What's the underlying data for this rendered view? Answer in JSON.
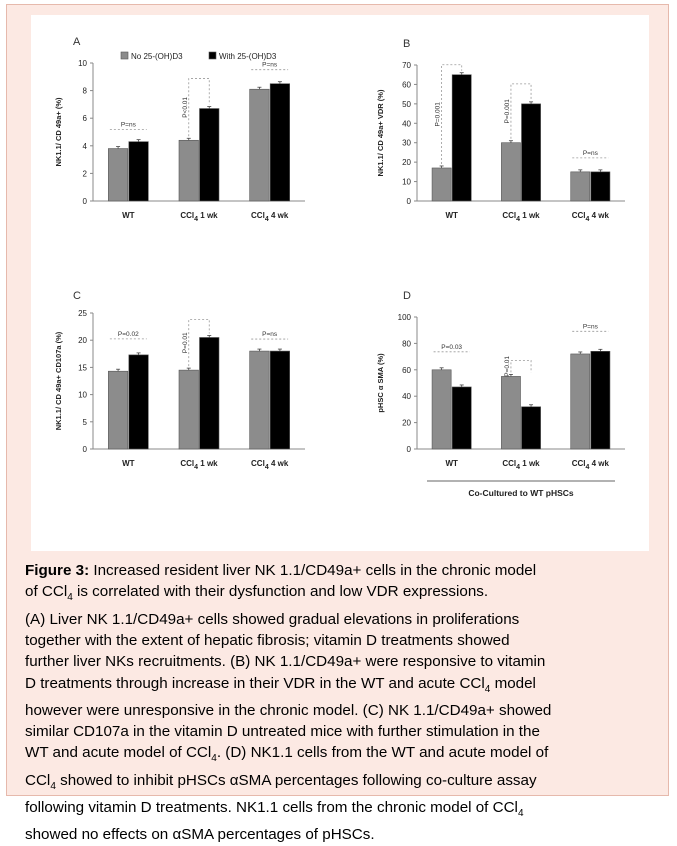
{
  "chart_data": [
    {
      "type": "bar",
      "panel_letter": "A",
      "ylabel": "NK1.1/ CD 49a+ (%)",
      "ylim": [
        0,
        10
      ],
      "yticks": [
        0,
        2,
        4,
        6,
        8,
        10
      ],
      "categories": [
        "WT",
        "CCl4 1 wk",
        "CCl4 4 wk"
      ],
      "series": [
        {
          "name": "No 25-(OH)D3",
          "values": [
            3.8,
            4.4,
            8.1
          ]
        },
        {
          "name": "With 25-(OH)D3",
          "values": [
            4.3,
            6.7,
            8.5
          ]
        }
      ],
      "annotations": [
        "P=ns",
        "P<0.01",
        "P=ns"
      ],
      "legend": "top"
    },
    {
      "type": "bar",
      "panel_letter": "B",
      "ylabel": "NK1.1/ CD 49a+ VDR (%)",
      "ylim": [
        0,
        70
      ],
      "yticks": [
        0,
        10,
        20,
        30,
        40,
        50,
        60,
        70
      ],
      "categories": [
        "WT",
        "CCl4 1 wk",
        "CCl4 4 wk"
      ],
      "series": [
        {
          "values": [
            17,
            30,
            15
          ]
        },
        {
          "values": [
            65,
            50,
            15
          ]
        }
      ],
      "annotations": [
        "P=0.001",
        "P=0.001",
        "P=ns"
      ]
    },
    {
      "type": "bar",
      "panel_letter": "C",
      "ylabel": "NK1.1/ CD 49a+ CD107a (%)",
      "ylim": [
        0,
        25
      ],
      "yticks": [
        0,
        5,
        10,
        15,
        20,
        25
      ],
      "categories": [
        "WT",
        "CCl4 1 wk",
        "CCl4 4 wk"
      ],
      "series": [
        {
          "values": [
            14.3,
            14.5,
            18
          ]
        },
        {
          "values": [
            17.3,
            20.5,
            18
          ]
        }
      ],
      "annotations": [
        "P=0.02",
        "P=0.01",
        "P=ns"
      ]
    },
    {
      "type": "bar",
      "panel_letter": "D",
      "ylabel": "pHSC α SMA (%)",
      "ylim": [
        0,
        100
      ],
      "yticks": [
        0,
        20,
        40,
        60,
        80,
        100
      ],
      "categories": [
        "WT",
        "CCl4 1 wk",
        "CCl4 4 wk"
      ],
      "series": [
        {
          "values": [
            60,
            55,
            72
          ]
        },
        {
          "values": [
            47,
            32,
            74
          ]
        }
      ],
      "annotations": [
        "P=0.03",
        "P=0.01",
        "P=ns"
      ],
      "xlabel": "Co-Cultured to WT pHSCs"
    }
  ],
  "caption": {
    "heading": "Figure 3:",
    "lines": [
      " Increased resident liver NK 1.1/CD49a+ cells in the chronic model",
      "of CCl4 is correlated with their dysfunction and low VDR expressions.",
      "(A) Liver NK 1.1/CD49a+ cells showed gradual elevations in proliferations",
      "together with the extent of hepatic fibrosis; vitamin D treatments showed",
      "further liver NKs recruitments. (B) NK 1.1/CD49a+ were responsive to vitamin",
      "D treatments through increase in their VDR in the WT and acute CCl4 model",
      "however were unresponsive in the chronic model. (C) NK 1.1/CD49a+ showed",
      "similar CD107a in the vitamin D untreated mice with further stimulation in the",
      "WT and acute model of CCl4. (D) NK1.1 cells from the WT and acute model of",
      "CCl4 showed to inhibit pHSCs αSMA percentages following co-culture assay",
      "following vitamin D treatments. NK1.1 cells from the chronic model of CCl4",
      "showed no effects on αSMA percentages of pHSCs."
    ]
  },
  "colors": {
    "no_vitd": "#8c8c8c",
    "with_vitd": "#000000",
    "figure_bg": "#fce9e3"
  }
}
